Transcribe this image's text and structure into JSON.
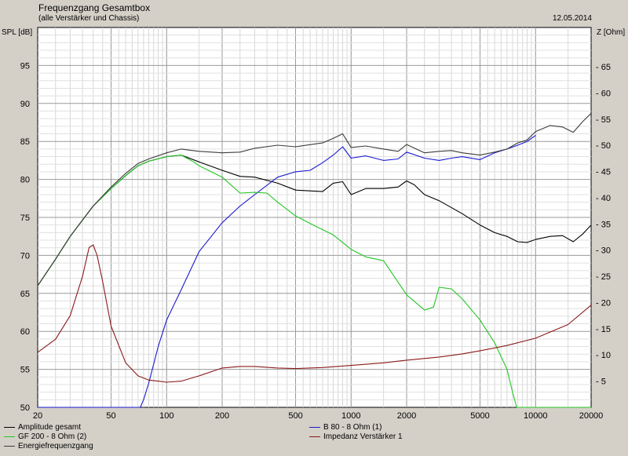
{
  "header": {
    "title": "Frequenzgang Gesamtbox",
    "subtitle": "(alle Verstärker und Chassis)",
    "date": "12.05.2014"
  },
  "chart_data": {
    "type": "line",
    "x_scale": "log",
    "xlim": [
      20,
      20000
    ],
    "ylim": [
      50,
      100
    ],
    "y2lim": [
      0,
      72.5
    ],
    "ylabel": "SPL [dB]",
    "y2label": "Z [Ohm]",
    "x_ticks": [
      20,
      50,
      100,
      200,
      500,
      1000,
      2000,
      5000,
      10000,
      20000
    ],
    "x_tick_labels": [
      "20",
      "50",
      "100",
      "200",
      "500",
      "1000",
      "2000",
      "5000",
      "10000",
      "20000"
    ],
    "y_ticks": [
      50,
      55,
      60,
      65,
      70,
      75,
      80,
      85,
      90,
      95
    ],
    "y2_ticks": [
      5,
      10,
      15,
      20,
      25,
      30,
      35,
      40,
      45,
      50,
      55,
      60,
      65
    ],
    "grid": true,
    "legend_position": "bottom",
    "series": [
      {
        "name": "Amplitude gesamt",
        "color": "#000000",
        "axis": "left",
        "points": [
          [
            20,
            66
          ],
          [
            25,
            69.5
          ],
          [
            30,
            72.5
          ],
          [
            40,
            76.5
          ],
          [
            50,
            78.8
          ],
          [
            60,
            80.5
          ],
          [
            70,
            81.8
          ],
          [
            80,
            82.4
          ],
          [
            100,
            83
          ],
          [
            120,
            83.2
          ],
          [
            150,
            82.3
          ],
          [
            200,
            81.2
          ],
          [
            250,
            80.4
          ],
          [
            300,
            80.3
          ],
          [
            400,
            79.5
          ],
          [
            500,
            78.6
          ],
          [
            700,
            78.4
          ],
          [
            800,
            79.5
          ],
          [
            900,
            79.7
          ],
          [
            1000,
            78
          ],
          [
            1200,
            78.8
          ],
          [
            1500,
            78.8
          ],
          [
            1800,
            79
          ],
          [
            2000,
            79.8
          ],
          [
            2200,
            79.3
          ],
          [
            2500,
            78
          ],
          [
            3000,
            77.2
          ],
          [
            4000,
            75.5
          ],
          [
            5000,
            74
          ],
          [
            6000,
            73
          ],
          [
            7000,
            72.5
          ],
          [
            8000,
            71.8
          ],
          [
            9000,
            71.7
          ],
          [
            10000,
            72.1
          ],
          [
            12000,
            72.5
          ],
          [
            14000,
            72.6
          ],
          [
            16000,
            71.8
          ],
          [
            18000,
            72.8
          ],
          [
            20000,
            74
          ]
        ]
      },
      {
        "name": "B 80 - 8 Ohm (1)",
        "color": "#1a1ad0",
        "axis": "left",
        "points": [
          [
            20,
            50
          ],
          [
            72,
            50
          ],
          [
            75,
            51
          ],
          [
            80,
            53.2
          ],
          [
            90,
            58
          ],
          [
            100,
            61.5
          ],
          [
            120,
            65.5
          ],
          [
            150,
            70.5
          ],
          [
            200,
            74.3
          ],
          [
            250,
            76.5
          ],
          [
            300,
            78
          ],
          [
            400,
            80.3
          ],
          [
            500,
            81
          ],
          [
            600,
            81.2
          ],
          [
            700,
            82.2
          ],
          [
            800,
            83.2
          ],
          [
            900,
            84.3
          ],
          [
            1000,
            82.8
          ],
          [
            1200,
            83.1
          ],
          [
            1500,
            82.5
          ],
          [
            1800,
            82.7
          ],
          [
            2000,
            83.6
          ],
          [
            2500,
            82.8
          ],
          [
            3000,
            82.5
          ],
          [
            3500,
            82.8
          ],
          [
            4000,
            83
          ],
          [
            5000,
            82.6
          ],
          [
            6000,
            83.5
          ],
          [
            7000,
            84
          ],
          [
            8000,
            84.5
          ],
          [
            9000,
            85
          ],
          [
            10000,
            85.8
          ]
        ]
      },
      {
        "name": "GF 200 - 8 Ohm (2)",
        "color": "#22c622",
        "axis": "left",
        "points": [
          [
            20,
            66
          ],
          [
            25,
            69.5
          ],
          [
            30,
            72.5
          ],
          [
            40,
            76.5
          ],
          [
            50,
            78.8
          ],
          [
            60,
            80.5
          ],
          [
            70,
            81.8
          ],
          [
            80,
            82.4
          ],
          [
            100,
            83
          ],
          [
            120,
            83.2
          ],
          [
            140,
            82.3
          ],
          [
            150,
            81.8
          ],
          [
            200,
            80.3
          ],
          [
            250,
            78.2
          ],
          [
            300,
            78.3
          ],
          [
            350,
            78.2
          ],
          [
            400,
            77
          ],
          [
            500,
            75.2
          ],
          [
            600,
            74.2
          ],
          [
            800,
            72.7
          ],
          [
            1000,
            70.8
          ],
          [
            1200,
            69.8
          ],
          [
            1500,
            69.3
          ],
          [
            2000,
            64.8
          ],
          [
            2500,
            62.8
          ],
          [
            2800,
            63.2
          ],
          [
            3000,
            65.8
          ],
          [
            3500,
            65.6
          ],
          [
            4000,
            64.3
          ],
          [
            5000,
            61.5
          ],
          [
            6000,
            58.5
          ],
          [
            7000,
            55
          ],
          [
            7500,
            52
          ],
          [
            7900,
            50
          ],
          [
            20000,
            50
          ]
        ]
      },
      {
        "name": "Impedanz Verstärker 1",
        "color": "#8b1a1a",
        "axis": "right",
        "points": [
          [
            20,
            10.5
          ],
          [
            25,
            13
          ],
          [
            30,
            17.5
          ],
          [
            35,
            25
          ],
          [
            38,
            30.5
          ],
          [
            40,
            31
          ],
          [
            42,
            29
          ],
          [
            45,
            24
          ],
          [
            50,
            15.5
          ],
          [
            60,
            8.5
          ],
          [
            70,
            6
          ],
          [
            80,
            5.2
          ],
          [
            90,
            5
          ],
          [
            100,
            4.8
          ],
          [
            120,
            5
          ],
          [
            150,
            6
          ],
          [
            200,
            7.5
          ],
          [
            250,
            7.8
          ],
          [
            300,
            7.8
          ],
          [
            400,
            7.5
          ],
          [
            500,
            7.4
          ],
          [
            700,
            7.6
          ],
          [
            1000,
            8
          ],
          [
            1500,
            8.5
          ],
          [
            2000,
            9
          ],
          [
            3000,
            9.6
          ],
          [
            4000,
            10.2
          ],
          [
            5000,
            10.8
          ],
          [
            7000,
            11.8
          ],
          [
            10000,
            13.2
          ],
          [
            15000,
            15.8
          ],
          [
            20000,
            19.5
          ]
        ]
      },
      {
        "name": "Energiefrequenzgang",
        "color": "#3c3c3c",
        "axis": "left",
        "points": [
          [
            20,
            66
          ],
          [
            25,
            69.5
          ],
          [
            30,
            72.5
          ],
          [
            40,
            76.5
          ],
          [
            50,
            79
          ],
          [
            60,
            80.8
          ],
          [
            70,
            82.1
          ],
          [
            80,
            82.7
          ],
          [
            100,
            83.5
          ],
          [
            120,
            84
          ],
          [
            150,
            83.7
          ],
          [
            200,
            83.5
          ],
          [
            250,
            83.6
          ],
          [
            300,
            84.1
          ],
          [
            400,
            84.5
          ],
          [
            500,
            84.3
          ],
          [
            700,
            84.8
          ],
          [
            800,
            85.4
          ],
          [
            900,
            86
          ],
          [
            1000,
            84.2
          ],
          [
            1200,
            84.4
          ],
          [
            1500,
            84
          ],
          [
            1800,
            83.7
          ],
          [
            2000,
            84.6
          ],
          [
            2500,
            83.5
          ],
          [
            3000,
            83.7
          ],
          [
            3500,
            83.8
          ],
          [
            4000,
            83.5
          ],
          [
            5000,
            83.2
          ],
          [
            6000,
            83.6
          ],
          [
            7000,
            84
          ],
          [
            8000,
            84.8
          ],
          [
            9000,
            85.2
          ],
          [
            10000,
            86.3
          ],
          [
            12000,
            87.1
          ],
          [
            14000,
            86.9
          ],
          [
            16000,
            86.2
          ],
          [
            18000,
            87.6
          ],
          [
            20000,
            88.7
          ]
        ]
      }
    ]
  }
}
